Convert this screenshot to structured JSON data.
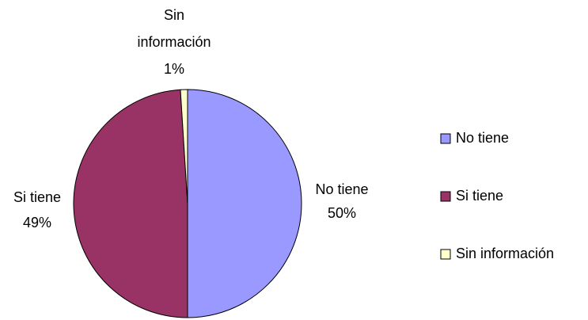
{
  "chart_data": {
    "type": "pie",
    "categories": [
      "No tiene",
      "Si tiene",
      "Sin información"
    ],
    "values": [
      50,
      49,
      1
    ],
    "value_labels": [
      "50%",
      "49%",
      "1%"
    ],
    "colors": [
      "#9999ff",
      "#993366",
      "#ffffcc"
    ],
    "legend": "right"
  }
}
